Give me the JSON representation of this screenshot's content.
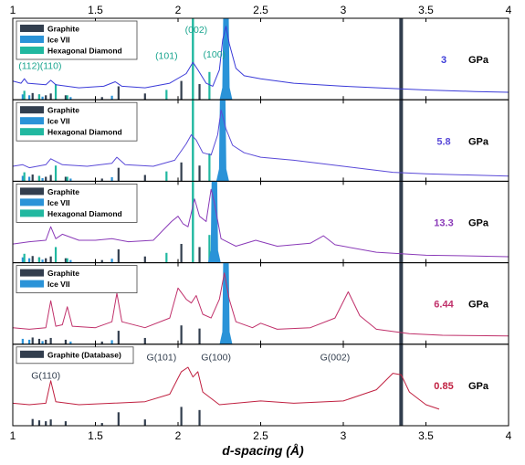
{
  "chart_data": {
    "type": "line",
    "xlabel": "d-spacing (Å)",
    "xlim": [
      1,
      4
    ],
    "xticks": [
      1,
      1.5,
      2,
      2.5,
      3,
      3.5,
      4
    ],
    "tick_labels": [
      "1",
      "1.5",
      "2",
      "2.5",
      "3",
      "3.5",
      "4"
    ],
    "unit": "GPa",
    "colors": {
      "graphite": "#323e4e",
      "ice": "#2a93d8",
      "diamond": "#21b8a0"
    },
    "reference_sticks": {
      "graphite": [
        {
          "x": 1.12,
          "h": 0.15
        },
        {
          "x": 1.16,
          "h": 0.12
        },
        {
          "x": 1.2,
          "h": 0.1
        },
        {
          "x": 1.23,
          "h": 0.14
        },
        {
          "x": 1.32,
          "h": 0.1
        },
        {
          "x": 1.54,
          "h": 0.06
        },
        {
          "x": 1.64,
          "h": 0.3
        },
        {
          "x": 1.8,
          "h": 0.14
        },
        {
          "x": 2.02,
          "h": 0.42
        },
        {
          "x": 2.13,
          "h": 0.35
        },
        {
          "x": 3.35,
          "h": 1.0
        }
      ],
      "ice": [
        {
          "x": 1.06,
          "h": 0.12
        },
        {
          "x": 1.1,
          "h": 0.1
        },
        {
          "x": 1.18,
          "h": 0.07
        },
        {
          "x": 1.35,
          "h": 0.06
        },
        {
          "x": 1.6,
          "h": 0.09
        }
      ],
      "diamond": [
        {
          "x": 1.07,
          "h": 0.2
        },
        {
          "x": 1.16,
          "h": 0.12
        },
        {
          "x": 1.26,
          "h": 0.35
        },
        {
          "x": 1.33,
          "h": 0.1
        },
        {
          "x": 1.93,
          "h": 0.22
        },
        {
          "x": 2.09,
          "h": 1.0
        },
        {
          "x": 2.19,
          "h": 0.62
        }
      ]
    },
    "panels": [
      {
        "pressure": "3",
        "unit": "GPa",
        "color": "#3a3ad8",
        "legend": [
          "Graphite",
          "Ice VII",
          "Hexagonal Diamond"
        ],
        "sticks": [
          "graphite",
          "ice",
          "diamond"
        ],
        "ice_peak": 2.29,
        "annotations": [
          "(112)",
          "(110)",
          "(101)",
          "(002)",
          "(100)"
        ],
        "annotation_x": [
          1.1,
          1.23,
          1.93,
          2.11,
          2.22
        ],
        "annotation_color": "#1aa58f",
        "curve": [
          [
            1.0,
            0.25
          ],
          [
            1.05,
            0.22
          ],
          [
            1.07,
            0.28
          ],
          [
            1.09,
            0.22
          ],
          [
            1.2,
            0.2
          ],
          [
            1.23,
            0.26
          ],
          [
            1.26,
            0.2
          ],
          [
            1.4,
            0.16
          ],
          [
            1.55,
            0.18
          ],
          [
            1.62,
            0.24
          ],
          [
            1.66,
            0.18
          ],
          [
            1.8,
            0.16
          ],
          [
            1.95,
            0.22
          ],
          [
            2.05,
            0.35
          ],
          [
            2.09,
            0.5
          ],
          [
            2.12,
            0.4
          ],
          [
            2.17,
            0.22
          ],
          [
            2.21,
            0.18
          ],
          [
            2.25,
            0.4
          ],
          [
            2.27,
            0.8
          ],
          [
            2.29,
            0.98
          ],
          [
            2.31,
            0.75
          ],
          [
            2.35,
            0.42
          ],
          [
            2.4,
            0.32
          ],
          [
            2.5,
            0.28
          ],
          [
            2.7,
            0.22
          ],
          [
            3.0,
            0.18
          ],
          [
            3.3,
            0.15
          ],
          [
            3.5,
            0.13
          ],
          [
            3.8,
            0.11
          ],
          [
            4.0,
            0.1
          ]
        ]
      },
      {
        "pressure": "5.8",
        "unit": "GPa",
        "color": "#5a4ad8",
        "legend": [
          "Graphite",
          "Ice VII",
          "Hexagonal Diamond"
        ],
        "sticks": [
          "graphite",
          "ice",
          "diamond"
        ],
        "ice_peak": 2.27,
        "curve": [
          [
            1.0,
            0.2
          ],
          [
            1.06,
            0.22
          ],
          [
            1.1,
            0.18
          ],
          [
            1.2,
            0.22
          ],
          [
            1.23,
            0.3
          ],
          [
            1.3,
            0.22
          ],
          [
            1.45,
            0.2
          ],
          [
            1.6,
            0.24
          ],
          [
            1.63,
            0.32
          ],
          [
            1.68,
            0.22
          ],
          [
            1.85,
            0.2
          ],
          [
            1.98,
            0.28
          ],
          [
            2.05,
            0.5
          ],
          [
            2.08,
            0.62
          ],
          [
            2.11,
            0.55
          ],
          [
            2.15,
            0.38
          ],
          [
            2.2,
            0.35
          ],
          [
            2.24,
            0.62
          ],
          [
            2.26,
            0.95
          ],
          [
            2.29,
            0.7
          ],
          [
            2.33,
            0.48
          ],
          [
            2.4,
            0.38
          ],
          [
            2.5,
            0.32
          ],
          [
            2.7,
            0.28
          ],
          [
            3.0,
            0.2
          ],
          [
            3.3,
            0.12
          ],
          [
            3.5,
            0.1
          ],
          [
            3.8,
            0.08
          ],
          [
            4.0,
            0.07
          ]
        ]
      },
      {
        "pressure": "13.3",
        "unit": "GPa",
        "color": "#8a3ab8",
        "legend": [
          "Graphite",
          "Ice VII",
          "Hexagonal Diamond"
        ],
        "sticks": [
          "graphite",
          "ice",
          "diamond"
        ],
        "ice_peak": 2.22,
        "curve": [
          [
            1.0,
            0.25
          ],
          [
            1.1,
            0.28
          ],
          [
            1.2,
            0.3
          ],
          [
            1.23,
            0.48
          ],
          [
            1.26,
            0.32
          ],
          [
            1.3,
            0.38
          ],
          [
            1.4,
            0.3
          ],
          [
            1.5,
            0.3
          ],
          [
            1.6,
            0.32
          ],
          [
            1.7,
            0.28
          ],
          [
            1.85,
            0.3
          ],
          [
            1.96,
            0.55
          ],
          [
            2.0,
            0.62
          ],
          [
            2.03,
            0.52
          ],
          [
            2.06,
            0.48
          ],
          [
            2.1,
            0.85
          ],
          [
            2.13,
            0.62
          ],
          [
            2.17,
            0.55
          ],
          [
            2.2,
            0.98
          ],
          [
            2.22,
            0.8
          ],
          [
            2.26,
            0.32
          ],
          [
            2.35,
            0.22
          ],
          [
            2.47,
            0.3
          ],
          [
            2.6,
            0.22
          ],
          [
            2.8,
            0.26
          ],
          [
            2.88,
            0.36
          ],
          [
            2.95,
            0.24
          ],
          [
            3.2,
            0.14
          ],
          [
            3.5,
            0.1
          ],
          [
            3.8,
            0.09
          ],
          [
            4.0,
            0.08
          ]
        ]
      },
      {
        "pressure": "6.44",
        "unit": "GPa",
        "color": "#c0306a",
        "legend": [
          "Graphite",
          "Ice VII"
        ],
        "sticks": [
          "graphite",
          "ice"
        ],
        "ice_peak": 2.29,
        "curve": [
          [
            1.0,
            0.22
          ],
          [
            1.1,
            0.2
          ],
          [
            1.2,
            0.22
          ],
          [
            1.23,
            0.58
          ],
          [
            1.26,
            0.24
          ],
          [
            1.3,
            0.26
          ],
          [
            1.33,
            0.5
          ],
          [
            1.36,
            0.24
          ],
          [
            1.5,
            0.22
          ],
          [
            1.6,
            0.3
          ],
          [
            1.63,
            0.68
          ],
          [
            1.66,
            0.3
          ],
          [
            1.8,
            0.22
          ],
          [
            1.95,
            0.35
          ],
          [
            2.0,
            0.75
          ],
          [
            2.05,
            0.6
          ],
          [
            2.08,
            0.55
          ],
          [
            2.11,
            0.65
          ],
          [
            2.15,
            0.4
          ],
          [
            2.2,
            0.35
          ],
          [
            2.25,
            0.6
          ],
          [
            2.28,
            0.95
          ],
          [
            2.31,
            0.6
          ],
          [
            2.35,
            0.3
          ],
          [
            2.45,
            0.22
          ],
          [
            2.5,
            0.28
          ],
          [
            2.6,
            0.2
          ],
          [
            2.8,
            0.22
          ],
          [
            2.95,
            0.35
          ],
          [
            3.03,
            0.7
          ],
          [
            3.1,
            0.38
          ],
          [
            3.2,
            0.2
          ],
          [
            3.4,
            0.14
          ],
          [
            3.6,
            0.12
          ],
          [
            4.0,
            0.11
          ]
        ]
      },
      {
        "pressure": "0.85",
        "unit": "GPa",
        "color": "#c02040",
        "legend": [
          "Graphite (Database)"
        ],
        "sticks": [
          "graphite"
        ],
        "ice_peak": null,
        "annotations": [
          "G(110)",
          "G(101)",
          "G(100)",
          "G(002)"
        ],
        "annotation_x": [
          1.2,
          1.9,
          2.23,
          2.95
        ],
        "annotation_color": "#323e4e",
        "curve": [
          [
            1.0,
            0.3
          ],
          [
            1.1,
            0.28
          ],
          [
            1.2,
            0.3
          ],
          [
            1.23,
            0.6
          ],
          [
            1.26,
            0.32
          ],
          [
            1.4,
            0.28
          ],
          [
            1.6,
            0.3
          ],
          [
            1.8,
            0.32
          ],
          [
            1.95,
            0.42
          ],
          [
            2.02,
            0.72
          ],
          [
            2.06,
            0.78
          ],
          [
            2.09,
            0.65
          ],
          [
            2.12,
            0.72
          ],
          [
            2.15,
            0.45
          ],
          [
            2.25,
            0.28
          ],
          [
            2.5,
            0.33
          ],
          [
            2.7,
            0.3
          ],
          [
            3.0,
            0.33
          ],
          [
            3.2,
            0.48
          ],
          [
            3.3,
            0.7
          ],
          [
            3.35,
            0.68
          ],
          [
            3.4,
            0.45
          ],
          [
            3.5,
            0.28
          ],
          [
            3.58,
            0.22
          ]
        ]
      }
    ]
  }
}
